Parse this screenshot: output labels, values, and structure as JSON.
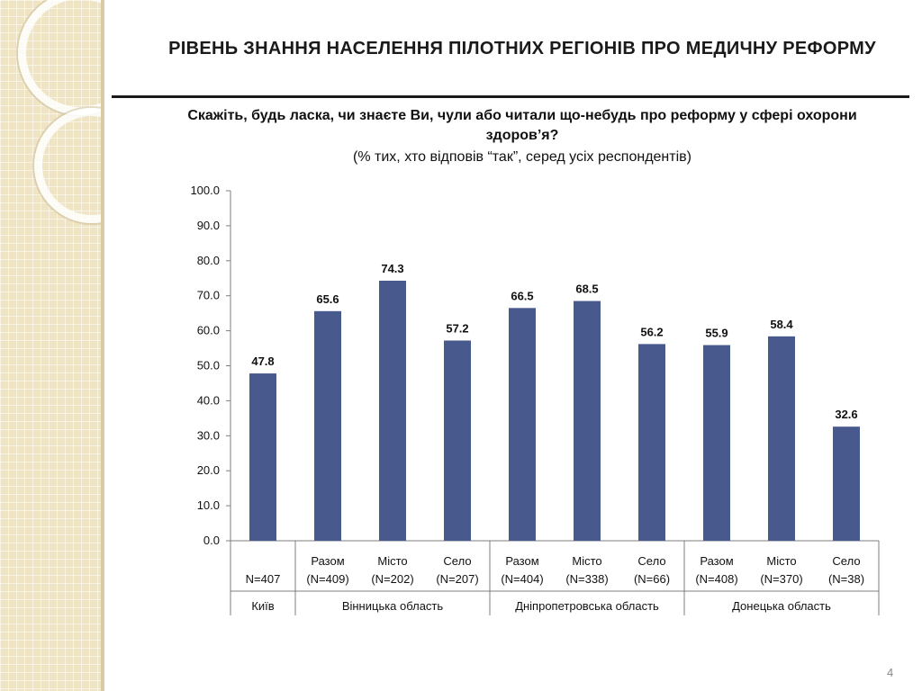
{
  "slide": {
    "title": "РІВЕНЬ ЗНАННЯ НАСЕЛЕННЯ ПІЛОТНИХ РЕГІОНІВ ПРО МЕДИЧНУ РЕФОРМУ",
    "question": "Скажіть, будь ласка, чи знаєте Ви, чули або читали що-небудь про реформу у сфері охорони здоров’я?",
    "subtitle": "(% тих, хто відповів “так”, серед усіх респондентів)",
    "page_number": "4"
  },
  "colors": {
    "bar": "#48598d",
    "axis": "#7f7f7f",
    "text": "#111111"
  },
  "chart_data": {
    "type": "bar",
    "ylim": [
      0,
      100
    ],
    "yticks": [
      "0.0",
      "10.0",
      "20.0",
      "30.0",
      "40.0",
      "50.0",
      "60.0",
      "70.0",
      "80.0",
      "90.0",
      "100.0"
    ],
    "categories": [
      {
        "sub": "",
        "n": "N=407",
        "value": 47.8,
        "label": "47.8"
      },
      {
        "sub": "Разом",
        "n": "(N=409)",
        "value": 65.6,
        "label": "65.6"
      },
      {
        "sub": "Місто",
        "n": "(N=202)",
        "value": 74.3,
        "label": "74.3"
      },
      {
        "sub": "Село",
        "n": "(N=207)",
        "value": 57.2,
        "label": "57.2"
      },
      {
        "sub": "Разом",
        "n": "(N=404)",
        "value": 66.5,
        "label": "66.5"
      },
      {
        "sub": "Місто",
        "n": "(N=338)",
        "value": 68.5,
        "label": "68.5"
      },
      {
        "sub": "Село",
        "n": "(N=66)",
        "value": 56.2,
        "label": "56.2"
      },
      {
        "sub": "Разом",
        "n": "(N=408)",
        "value": 55.9,
        "label": "55.9"
      },
      {
        "sub": "Місто",
        "n": "(N=370)",
        "value": 58.4,
        "label": "58.4"
      },
      {
        "sub": "Село",
        "n": "(N=38)",
        "value": 32.6,
        "label": "32.6"
      }
    ],
    "groups": [
      {
        "name": "Київ",
        "start": 0,
        "count": 1
      },
      {
        "name": "Вінницька область",
        "start": 1,
        "count": 3
      },
      {
        "name": "Дніпропетровська область",
        "start": 4,
        "count": 3
      },
      {
        "name": "Донецька область",
        "start": 7,
        "count": 3
      }
    ]
  }
}
